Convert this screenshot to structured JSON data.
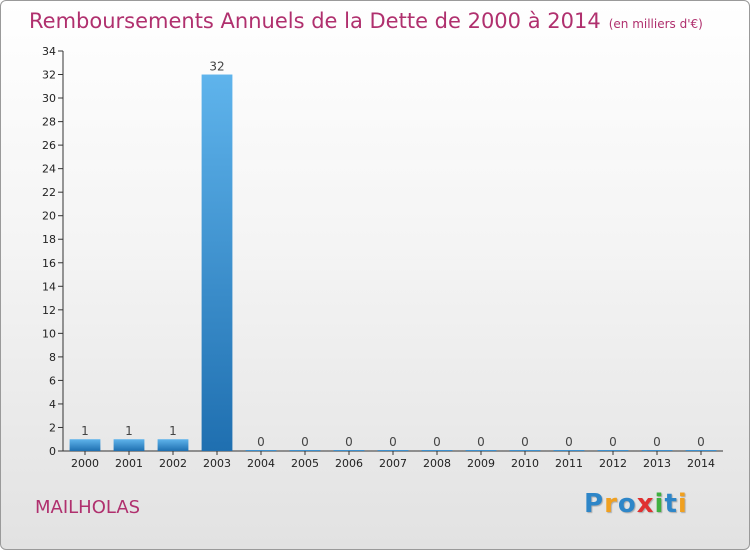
{
  "header": {
    "title": "Remboursements Annuels de la Dette de 2000 à 2014",
    "subtitle": "(en milliers d'€)"
  },
  "footer": {
    "commune": "MAILHOLAS",
    "logo_letters": [
      {
        "ch": "P",
        "color": "#2e86c8"
      },
      {
        "ch": "r",
        "color": "#f0a020"
      },
      {
        "ch": "o",
        "color": "#2e86c8"
      },
      {
        "ch": "x",
        "color": "#e03030"
      },
      {
        "ch": "i",
        "color": "#40b040"
      },
      {
        "ch": "t",
        "color": "#2e86c8"
      },
      {
        "ch": "i",
        "color": "#f0a020"
      }
    ]
  },
  "colors": {
    "title": "#b0306e",
    "bar_light": "#5fb4ec",
    "bar_dark": "#1f6fb0"
  },
  "chart_data": {
    "type": "bar",
    "title": "Remboursements Annuels de la Dette de 2000 à 2014",
    "subtitle": "(en milliers d'€)",
    "categories": [
      "2000",
      "2001",
      "2002",
      "2003",
      "2004",
      "2005",
      "2006",
      "2007",
      "2008",
      "2009",
      "2010",
      "2011",
      "2012",
      "2013",
      "2014"
    ],
    "values": [
      1,
      1,
      1,
      32,
      0,
      0,
      0,
      0,
      0,
      0,
      0,
      0,
      0,
      0,
      0
    ],
    "ylim": [
      0,
      34
    ],
    "yticks": [
      0,
      2,
      4,
      6,
      8,
      10,
      12,
      14,
      16,
      18,
      20,
      22,
      24,
      26,
      28,
      30,
      32,
      34
    ],
    "grid": false,
    "legend": "none",
    "xlabel": "",
    "ylabel": ""
  }
}
